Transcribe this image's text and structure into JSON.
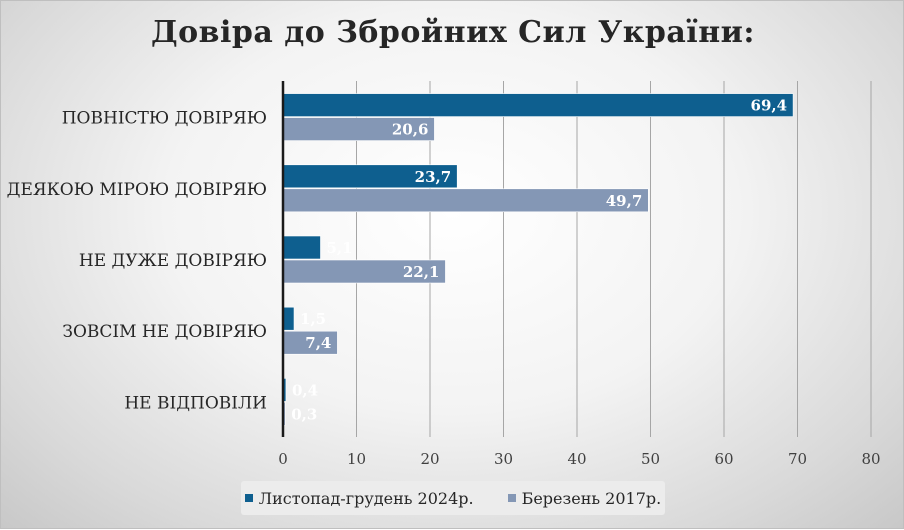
{
  "chart_data": {
    "type": "bar",
    "orientation": "horizontal",
    "title": "Довіра до Збройних Сил України:",
    "categories": [
      "ПОВНІСТЮ ДОВІРЯЮ",
      "ДЕЯКОЮ МІРОЮ ДОВІРЯЮ",
      "НЕ ДУЖЕ ДОВІРЯЮ",
      "ЗОВСІМ НЕ ДОВІРЯЮ",
      "НЕ ВІДПОВІЛИ"
    ],
    "series": [
      {
        "name": "Листопад-грудень 2024р.",
        "color": "#0e5f8f",
        "values": [
          69.4,
          23.7,
          5.1,
          1.5,
          0.4
        ],
        "labels": [
          "69,4",
          "23,7",
          "5,1",
          "1,5",
          "0,4"
        ]
      },
      {
        "name": "Березень 2017р.",
        "color": "#8497b5",
        "values": [
          20.6,
          49.7,
          22.1,
          7.4,
          0.3
        ],
        "labels": [
          "20,6",
          "49,7",
          "22,1",
          "7,4",
          "0,3"
        ]
      }
    ],
    "xlim": [
      0,
      80
    ],
    "xticks": [
      0,
      10,
      20,
      30,
      40,
      50,
      60,
      70,
      80
    ],
    "grid": true,
    "legend_position": "bottom"
  }
}
